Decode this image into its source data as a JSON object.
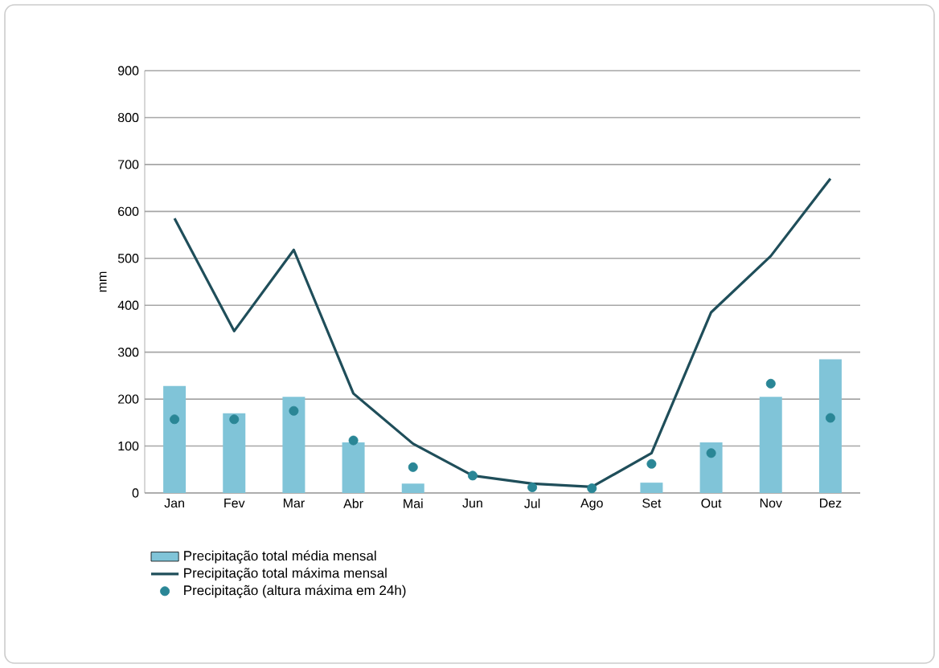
{
  "chart_data": {
    "type": "bar",
    "ylabel": "mm",
    "categories": [
      "Jan",
      "Fev",
      "Mar",
      "Abr",
      "Mai",
      "Jun",
      "Jul",
      "Ago",
      "Set",
      "Out",
      "Nov",
      "Dez"
    ],
    "series": [
      {
        "name": "Precipitação total média mensal",
        "color": "#80c4d8",
        "values": [
          228,
          170,
          205,
          108,
          20,
          0,
          0,
          0,
          22,
          108,
          205,
          285
        ]
      },
      {
        "type": "line",
        "name": "Precipitação total máxima mensal",
        "color": "#1f4e5a",
        "values": [
          585,
          345,
          518,
          212,
          105,
          37,
          20,
          13,
          85,
          385,
          505,
          670
        ]
      },
      {
        "type": "scatter",
        "name": "Precipitação (altura máxima em 24h)",
        "color": "#2a8696",
        "marker": "circle",
        "values": [
          157,
          157,
          175,
          112,
          55,
          37,
          12,
          10,
          62,
          85,
          233,
          160
        ]
      }
    ],
    "ylim": [
      0,
      900
    ],
    "yticks": [
      0,
      100,
      200,
      300,
      400,
      500,
      600,
      700,
      800,
      900
    ],
    "grid": "y",
    "legend": "bottom"
  }
}
